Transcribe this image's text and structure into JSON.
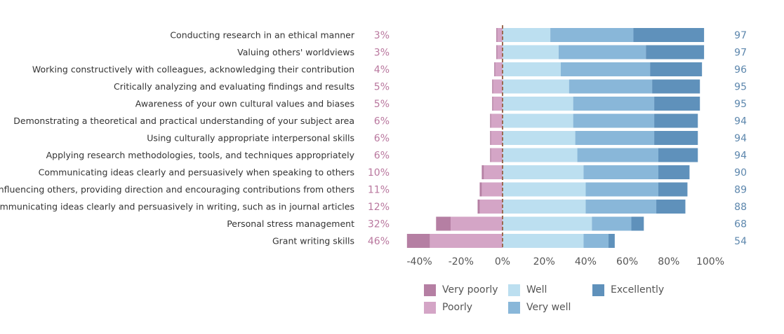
{
  "chart_data": {
    "type": "bar",
    "orientation": "horizontal-diverging",
    "categories": [
      "Conducting research in an ethical manner",
      "Valuing others' worldviews",
      "Working constructively with colleagues, acknowledging their contribution",
      "Critically analyzing and evaluating findings and results",
      "Awareness of your own cultural values and biases",
      "Demonstrating a theoretical and practical understanding of your subject area",
      "Using culturally appropriate interpersonal skills",
      "Applying research methodologies, tools, and techniques appropriately",
      "Communicating ideas clearly and persuasively when speaking to others",
      "Influencing others, providing direction and encouraging contributions from others",
      "Communicating ideas clearly and persuasively in writing, such as in journal articles",
      "Personal stress management",
      "Grant writing skills"
    ],
    "series": [
      {
        "name": "Very poorly",
        "color": "#b57fa3",
        "values": [
          0.5,
          0.5,
          0.5,
          0.5,
          0.5,
          0.5,
          0.5,
          0.5,
          1,
          1,
          1,
          7,
          11
        ]
      },
      {
        "name": "Poorly",
        "color": "#d4a5c6",
        "values": [
          2.5,
          2.5,
          3.5,
          4.5,
          4.5,
          5.5,
          5.5,
          5.5,
          9,
          10,
          11,
          25,
          35
        ]
      },
      {
        "name": "Well",
        "color": "#bcdff0",
        "values": [
          23,
          27,
          28,
          32,
          34,
          34,
          35,
          36,
          39,
          40,
          40,
          43,
          39
        ]
      },
      {
        "name": "Very well",
        "color": "#89b7d9",
        "values": [
          40,
          42,
          43,
          40,
          39,
          39,
          38,
          39,
          36,
          35,
          34,
          19,
          12
        ]
      },
      {
        "name": "Excellently",
        "color": "#5f91bb",
        "values": [
          34,
          28,
          25,
          23,
          22,
          21,
          21,
          19,
          15,
          14,
          14,
          6,
          3
        ]
      }
    ],
    "negative_totals": [
      "3%",
      "3%",
      "4%",
      "5%",
      "5%",
      "6%",
      "6%",
      "6%",
      "10%",
      "11%",
      "12%",
      "32%",
      "46%"
    ],
    "positive_totals": [
      "97",
      "97",
      "96",
      "95",
      "95",
      "94",
      "94",
      "94",
      "90",
      "89",
      "88",
      "68",
      "54"
    ],
    "xlim": [
      -45,
      100
    ],
    "x_ticks": [
      {
        "value": -40,
        "label": "-40%"
      },
      {
        "value": -20,
        "label": "-20%"
      },
      {
        "value": 0,
        "label": "0%"
      },
      {
        "value": 20,
        "label": "20%"
      },
      {
        "value": 40,
        "label": "40%"
      },
      {
        "value": 60,
        "label": "60%"
      },
      {
        "value": 80,
        "label": "80%"
      },
      {
        "value": 100,
        "label": "100%"
      }
    ],
    "zero_line_color": "#9b6b52",
    "legend_position": "bottom",
    "legend": [
      {
        "label": "Very poorly",
        "color": "#b57fa3"
      },
      {
        "label": "Poorly",
        "color": "#d4a5c6"
      },
      {
        "label": "Well",
        "color": "#bcdff0"
      },
      {
        "label": "Very well",
        "color": "#89b7d9"
      },
      {
        "label": "Excellently",
        "color": "#5f91bb"
      }
    ]
  }
}
